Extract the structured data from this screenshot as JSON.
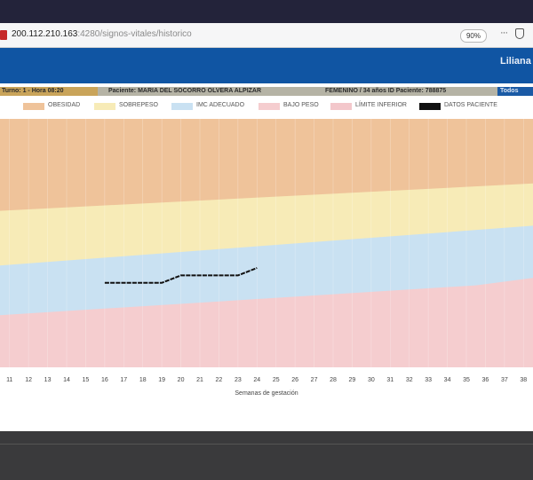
{
  "browser": {
    "url_host": "200.112.210.163",
    "url_path": ":4280/signos-vitales/historico",
    "zoom": "90%",
    "menu_label": "···"
  },
  "header": {
    "user": "Liliana"
  },
  "patient_bar": {
    "turno": "Turno: 1 - Hora 08:20",
    "paciente": "Paciente: MARIA DEL SOCORRO OLVERA ALPIZAR",
    "genero": "FEMENINO / 34 años ID Paciente: 788875",
    "extra": "Todos"
  },
  "legend": [
    {
      "label": "OBESIDAD",
      "color": "#efc39a"
    },
    {
      "label": "SOBREPESO",
      "color": "#f7ebb7"
    },
    {
      "label": "IMC ADECUADO",
      "color": "#c9e1f2"
    },
    {
      "label": "BAJO PESO",
      "color": "#f5cdcf"
    },
    {
      "label": "LÍMITE INFERIOR",
      "color": "#f3c7cb"
    },
    {
      "label": "DATOS PACIENTE",
      "color": "#111111"
    }
  ],
  "chart_data": {
    "type": "area",
    "xlabel": "Semanas de gestación",
    "ylabel": "",
    "x": [
      11,
      12,
      13,
      14,
      15,
      16,
      17,
      18,
      19,
      20,
      21,
      22,
      23,
      24,
      25,
      26,
      27,
      28,
      29,
      30,
      31,
      32,
      33,
      34,
      35,
      36,
      37,
      38
    ],
    "xlim": [
      10.5,
      38.5
    ],
    "ylim": [
      0,
      100
    ],
    "grid": true,
    "bands": [
      {
        "name": "OBESIDAD",
        "color": "#efc39a",
        "upper": [
          [
            10.5,
            100
          ],
          [
            38.5,
            100
          ]
        ]
      },
      {
        "name": "SOBREPESO",
        "color": "#f7ebb7",
        "upper": [
          [
            10.5,
            63
          ],
          [
            38.5,
            74
          ]
        ]
      },
      {
        "name": "IMC ADECUADO",
        "color": "#c9e1f2",
        "upper": [
          [
            10.5,
            41
          ],
          [
            38.5,
            57
          ]
        ]
      },
      {
        "name": "BAJO PESO",
        "color": "#f5cdcf",
        "upper": [
          [
            10.5,
            21
          ],
          [
            35.5,
            33
          ],
          [
            38.5,
            36
          ]
        ]
      }
    ],
    "series": [
      {
        "name": "DATOS PACIENTE",
        "color": "#111111",
        "points": [
          [
            16,
            34
          ],
          [
            19,
            34
          ],
          [
            20,
            37
          ],
          [
            23,
            37
          ],
          [
            24,
            40
          ]
        ]
      }
    ]
  }
}
